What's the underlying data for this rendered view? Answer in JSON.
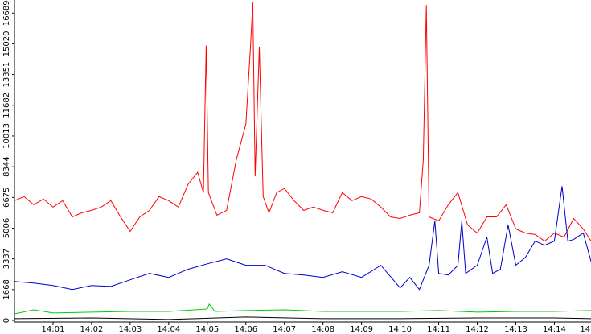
{
  "chart_data": {
    "type": "line",
    "xlim": [
      0,
      14.95
    ],
    "xticks": [
      {
        "value": 1,
        "label": "14:01"
      },
      {
        "value": 2,
        "label": "14:02"
      },
      {
        "value": 3,
        "label": "14:03"
      },
      {
        "value": 4,
        "label": "14:04"
      },
      {
        "value": 5,
        "label": "14:05"
      },
      {
        "value": 6,
        "label": "14:06"
      },
      {
        "value": 7,
        "label": "14:07"
      },
      {
        "value": 8,
        "label": "14:08"
      },
      {
        "value": 9,
        "label": "14:09"
      },
      {
        "value": 10,
        "label": "14:10"
      },
      {
        "value": 11,
        "label": "14:11"
      },
      {
        "value": 12,
        "label": "14:12"
      },
      {
        "value": 13,
        "label": "14:13"
      },
      {
        "value": 14,
        "label": "14:14"
      },
      {
        "value": 15,
        "label": "14"
      }
    ],
    "ylim": [
      0,
      17400
    ],
    "yticks": [
      0,
      1668,
      3337,
      5006,
      6675,
      8344,
      10013,
      11682,
      13351,
      15020,
      16689
    ],
    "series": [
      {
        "color": "#ff0000",
        "x": [
          0,
          0.25,
          0.5,
          0.75,
          1,
          1.25,
          1.5,
          1.75,
          2,
          2.25,
          2.5,
          2.75,
          3,
          3.25,
          3.5,
          3.75,
          4,
          4.25,
          4.5,
          4.75,
          4.9,
          4.97,
          5.03,
          5.25,
          5.5,
          5.75,
          6,
          6.12,
          6.18,
          6.24,
          6.35,
          6.45,
          6.6,
          6.8,
          7,
          7.25,
          7.5,
          7.75,
          8,
          8.25,
          8.5,
          8.75,
          9,
          9.25,
          9.5,
          9.75,
          10,
          10.25,
          10.5,
          10.6,
          10.68,
          10.75,
          11,
          11.25,
          11.5,
          11.75,
          12,
          12.25,
          12.5,
          12.75,
          13,
          13.25,
          13.5,
          13.75,
          14,
          14.25,
          14.5,
          14.75,
          14.95
        ],
        "values": [
          6500,
          6720,
          6280,
          6590,
          6150,
          6500,
          5620,
          5840,
          5970,
          6150,
          6500,
          5620,
          4830,
          5620,
          5970,
          6720,
          6500,
          6150,
          7380,
          8040,
          6940,
          14930,
          6940,
          5710,
          5970,
          8700,
          10670,
          14850,
          17300,
          7820,
          14850,
          6720,
          5840,
          6940,
          7160,
          6500,
          5970,
          6150,
          5970,
          5840,
          6940,
          6500,
          6720,
          6590,
          6150,
          5620,
          5530,
          5710,
          5840,
          8700,
          17130,
          5620,
          5400,
          6280,
          6940,
          5180,
          4740,
          5620,
          5620,
          6280,
          4960,
          4740,
          4660,
          4300,
          4740,
          4520,
          5530,
          4960,
          4300
        ]
      },
      {
        "color": "#0000cc",
        "x": [
          0,
          0.5,
          1,
          1.5,
          2,
          2.5,
          3,
          3.5,
          4,
          4.5,
          5,
          5.5,
          6,
          6.5,
          7,
          7.5,
          8,
          8.5,
          9,
          9.5,
          10,
          10.25,
          10.5,
          10.75,
          10.9,
          11,
          11.25,
          11.5,
          11.6,
          11.7,
          12,
          12.25,
          12.4,
          12.6,
          12.8,
          13,
          13.25,
          13.5,
          13.75,
          14,
          14.2,
          14.35,
          14.5,
          14.75,
          14.95
        ],
        "values": [
          2110,
          2020,
          1890,
          1670,
          1890,
          1840,
          2200,
          2550,
          2330,
          2770,
          3070,
          3340,
          2990,
          2990,
          2550,
          2460,
          2330,
          2640,
          2330,
          2990,
          1760,
          2330,
          1670,
          2990,
          5400,
          2550,
          2460,
          2990,
          5400,
          2550,
          2990,
          4520,
          2550,
          2770,
          5180,
          2990,
          3420,
          4300,
          4080,
          4300,
          7290,
          4300,
          4390,
          4740,
          3200
        ]
      },
      {
        "color": "#00cc00",
        "x": [
          0,
          0.5,
          1,
          2,
          3,
          4,
          5,
          5.05,
          5.2,
          6,
          7,
          8,
          9,
          10,
          11,
          12,
          13,
          14,
          14.95
        ],
        "values": [
          350,
          570,
          400,
          440,
          480,
          480,
          610,
          880,
          480,
          530,
          570,
          480,
          480,
          480,
          530,
          440,
          480,
          480,
          530
        ]
      },
      {
        "color": "#000000",
        "x": [
          0,
          2,
          4,
          6,
          8,
          10,
          12,
          14,
          14.95
        ],
        "values": [
          90,
          130,
          50,
          180,
          90,
          90,
          130,
          130,
          90
        ]
      }
    ]
  }
}
